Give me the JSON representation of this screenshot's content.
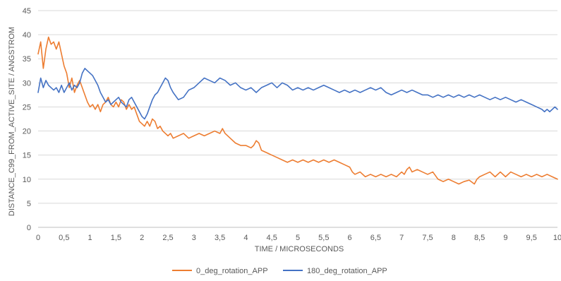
{
  "chart_data": {
    "type": "line",
    "title": "",
    "xlabel": "TIME / MICROSECONDS",
    "ylabel": "DISTANCE_C99_FROM_ACTIVE_SITE / ANGSTROM",
    "xlim": [
      0,
      10
    ],
    "ylim": [
      0,
      45
    ],
    "x_ticks": [
      "0",
      "0,5",
      "1",
      "1,5",
      "2",
      "2,5",
      "3",
      "3,5",
      "4",
      "4,5",
      "5",
      "5,5",
      "6",
      "6,5",
      "7",
      "7,5",
      "8",
      "8,5",
      "9",
      "9,5",
      "10"
    ],
    "y_ticks": [
      "0",
      "5",
      "10",
      "15",
      "20",
      "25",
      "30",
      "35",
      "40",
      "45"
    ],
    "grid": "horizontal",
    "legend_position": "bottom",
    "series": [
      {
        "name": "0_deg_rotation_APP",
        "color": "#ED7D31",
        "points": [
          [
            0,
            36
          ],
          [
            0.05,
            38.5
          ],
          [
            0.1,
            33
          ],
          [
            0.15,
            37
          ],
          [
            0.2,
            39.5
          ],
          [
            0.25,
            38
          ],
          [
            0.3,
            38.5
          ],
          [
            0.35,
            37
          ],
          [
            0.4,
            38.5
          ],
          [
            0.45,
            36
          ],
          [
            0.5,
            33.5
          ],
          [
            0.55,
            32
          ],
          [
            0.6,
            29
          ],
          [
            0.65,
            31
          ],
          [
            0.7,
            28
          ],
          [
            0.75,
            29.5
          ],
          [
            0.8,
            30.5
          ],
          [
            0.85,
            29
          ],
          [
            0.9,
            27.5
          ],
          [
            0.95,
            26
          ],
          [
            1.0,
            25
          ],
          [
            1.05,
            25.5
          ],
          [
            1.1,
            24.5
          ],
          [
            1.15,
            25.5
          ],
          [
            1.2,
            24
          ],
          [
            1.25,
            25.5
          ],
          [
            1.3,
            26
          ],
          [
            1.35,
            27
          ],
          [
            1.4,
            25.5
          ],
          [
            1.45,
            25
          ],
          [
            1.5,
            26
          ],
          [
            1.55,
            25
          ],
          [
            1.6,
            26.5
          ],
          [
            1.65,
            26
          ],
          [
            1.7,
            24.5
          ],
          [
            1.75,
            25.5
          ],
          [
            1.8,
            24.5
          ],
          [
            1.85,
            25
          ],
          [
            1.9,
            23.5
          ],
          [
            1.95,
            22
          ],
          [
            2.0,
            21.5
          ],
          [
            2.05,
            21
          ],
          [
            2.1,
            22
          ],
          [
            2.15,
            21
          ],
          [
            2.2,
            22.5
          ],
          [
            2.25,
            22
          ],
          [
            2.3,
            20.5
          ],
          [
            2.35,
            21
          ],
          [
            2.4,
            20
          ],
          [
            2.45,
            19.5
          ],
          [
            2.5,
            19
          ],
          [
            2.55,
            19.5
          ],
          [
            2.6,
            18.5
          ],
          [
            2.7,
            19
          ],
          [
            2.8,
            19.5
          ],
          [
            2.9,
            18.5
          ],
          [
            3.0,
            19
          ],
          [
            3.1,
            19.5
          ],
          [
            3.2,
            19
          ],
          [
            3.3,
            19.5
          ],
          [
            3.4,
            20
          ],
          [
            3.5,
            19.5
          ],
          [
            3.55,
            20.5
          ],
          [
            3.6,
            19.5
          ],
          [
            3.7,
            18.5
          ],
          [
            3.8,
            17.5
          ],
          [
            3.9,
            17
          ],
          [
            4.0,
            17
          ],
          [
            4.1,
            16.5
          ],
          [
            4.15,
            17
          ],
          [
            4.2,
            18
          ],
          [
            4.25,
            17.5
          ],
          [
            4.3,
            16
          ],
          [
            4.4,
            15.5
          ],
          [
            4.5,
            15
          ],
          [
            4.6,
            14.5
          ],
          [
            4.7,
            14
          ],
          [
            4.8,
            13.5
          ],
          [
            4.9,
            14
          ],
          [
            5.0,
            13.5
          ],
          [
            5.1,
            14
          ],
          [
            5.2,
            13.5
          ],
          [
            5.3,
            14
          ],
          [
            5.4,
            13.5
          ],
          [
            5.5,
            14
          ],
          [
            5.6,
            13.5
          ],
          [
            5.7,
            14
          ],
          [
            5.8,
            13.5
          ],
          [
            5.9,
            13
          ],
          [
            6.0,
            12.5
          ],
          [
            6.05,
            11.5
          ],
          [
            6.1,
            11
          ],
          [
            6.2,
            11.5
          ],
          [
            6.3,
            10.5
          ],
          [
            6.4,
            11
          ],
          [
            6.5,
            10.5
          ],
          [
            6.6,
            11
          ],
          [
            6.7,
            10.5
          ],
          [
            6.8,
            11
          ],
          [
            6.9,
            10.5
          ],
          [
            7.0,
            11.5
          ],
          [
            7.05,
            11
          ],
          [
            7.1,
            12
          ],
          [
            7.15,
            12.5
          ],
          [
            7.2,
            11.5
          ],
          [
            7.3,
            12
          ],
          [
            7.4,
            11.5
          ],
          [
            7.5,
            11
          ],
          [
            7.6,
            11.5
          ],
          [
            7.7,
            10
          ],
          [
            7.8,
            9.5
          ],
          [
            7.9,
            10
          ],
          [
            8.0,
            9.5
          ],
          [
            8.1,
            9
          ],
          [
            8.2,
            9.5
          ],
          [
            8.3,
            9.8
          ],
          [
            8.4,
            9
          ],
          [
            8.45,
            10
          ],
          [
            8.5,
            10.5
          ],
          [
            8.6,
            11
          ],
          [
            8.7,
            11.5
          ],
          [
            8.8,
            10.5
          ],
          [
            8.9,
            11.5
          ],
          [
            9.0,
            10.5
          ],
          [
            9.1,
            11.5
          ],
          [
            9.2,
            11
          ],
          [
            9.3,
            10.5
          ],
          [
            9.4,
            11
          ],
          [
            9.5,
            10.5
          ],
          [
            9.6,
            11
          ],
          [
            9.7,
            10.5
          ],
          [
            9.8,
            11
          ],
          [
            9.9,
            10.5
          ],
          [
            10.0,
            10
          ]
        ]
      },
      {
        "name": "180_deg_rotation_APP",
        "color": "#4472C4",
        "points": [
          [
            0,
            28
          ],
          [
            0.05,
            31
          ],
          [
            0.1,
            29
          ],
          [
            0.15,
            30.5
          ],
          [
            0.2,
            29.5
          ],
          [
            0.25,
            29
          ],
          [
            0.3,
            28.5
          ],
          [
            0.35,
            29
          ],
          [
            0.4,
            28
          ],
          [
            0.45,
            29.5
          ],
          [
            0.5,
            28
          ],
          [
            0.55,
            29
          ],
          [
            0.6,
            30
          ],
          [
            0.65,
            28.5
          ],
          [
            0.7,
            29.5
          ],
          [
            0.75,
            29
          ],
          [
            0.8,
            30
          ],
          [
            0.85,
            32
          ],
          [
            0.9,
            33
          ],
          [
            0.95,
            32.5
          ],
          [
            1.0,
            32
          ],
          [
            1.05,
            31.5
          ],
          [
            1.1,
            30.5
          ],
          [
            1.15,
            29.5
          ],
          [
            1.2,
            28
          ],
          [
            1.25,
            27
          ],
          [
            1.3,
            26
          ],
          [
            1.35,
            26.5
          ],
          [
            1.4,
            25.5
          ],
          [
            1.45,
            26
          ],
          [
            1.5,
            26.5
          ],
          [
            1.55,
            27
          ],
          [
            1.6,
            26
          ],
          [
            1.65,
            25.5
          ],
          [
            1.7,
            25
          ],
          [
            1.75,
            26.5
          ],
          [
            1.8,
            27
          ],
          [
            1.85,
            26
          ],
          [
            1.9,
            25
          ],
          [
            1.95,
            24
          ],
          [
            2.0,
            23
          ],
          [
            2.05,
            22.5
          ],
          [
            2.1,
            23.5
          ],
          [
            2.15,
            25
          ],
          [
            2.2,
            26.5
          ],
          [
            2.25,
            27.5
          ],
          [
            2.3,
            28
          ],
          [
            2.35,
            29
          ],
          [
            2.4,
            30
          ],
          [
            2.45,
            31
          ],
          [
            2.5,
            30.5
          ],
          [
            2.55,
            29
          ],
          [
            2.6,
            28
          ],
          [
            2.7,
            26.5
          ],
          [
            2.8,
            27
          ],
          [
            2.9,
            28.5
          ],
          [
            3.0,
            29
          ],
          [
            3.1,
            30
          ],
          [
            3.2,
            31
          ],
          [
            3.3,
            30.5
          ],
          [
            3.4,
            30
          ],
          [
            3.5,
            31
          ],
          [
            3.6,
            30.5
          ],
          [
            3.7,
            29.5
          ],
          [
            3.8,
            30
          ],
          [
            3.9,
            29
          ],
          [
            4.0,
            28.5
          ],
          [
            4.1,
            29
          ],
          [
            4.2,
            28
          ],
          [
            4.3,
            29
          ],
          [
            4.4,
            29.5
          ],
          [
            4.5,
            30
          ],
          [
            4.6,
            29
          ],
          [
            4.7,
            30
          ],
          [
            4.8,
            29.5
          ],
          [
            4.9,
            28.5
          ],
          [
            5.0,
            29
          ],
          [
            5.1,
            28.5
          ],
          [
            5.2,
            29
          ],
          [
            5.3,
            28.5
          ],
          [
            5.4,
            29
          ],
          [
            5.5,
            29.5
          ],
          [
            5.6,
            29
          ],
          [
            5.7,
            28.5
          ],
          [
            5.8,
            28
          ],
          [
            5.9,
            28.5
          ],
          [
            6.0,
            28
          ],
          [
            6.1,
            28.5
          ],
          [
            6.2,
            28
          ],
          [
            6.3,
            28.5
          ],
          [
            6.4,
            29
          ],
          [
            6.5,
            28.5
          ],
          [
            6.6,
            29
          ],
          [
            6.7,
            28
          ],
          [
            6.8,
            27.5
          ],
          [
            6.9,
            28
          ],
          [
            7.0,
            28.5
          ],
          [
            7.1,
            28
          ],
          [
            7.2,
            28.5
          ],
          [
            7.3,
            28
          ],
          [
            7.4,
            27.5
          ],
          [
            7.5,
            27.5
          ],
          [
            7.6,
            27
          ],
          [
            7.7,
            27.5
          ],
          [
            7.8,
            27
          ],
          [
            7.9,
            27.5
          ],
          [
            8.0,
            27
          ],
          [
            8.1,
            27.5
          ],
          [
            8.2,
            27
          ],
          [
            8.3,
            27.5
          ],
          [
            8.4,
            27
          ],
          [
            8.5,
            27.5
          ],
          [
            8.6,
            27
          ],
          [
            8.7,
            26.5
          ],
          [
            8.8,
            27
          ],
          [
            8.9,
            26.5
          ],
          [
            9.0,
            27
          ],
          [
            9.1,
            26.5
          ],
          [
            9.2,
            26
          ],
          [
            9.3,
            26.5
          ],
          [
            9.4,
            26
          ],
          [
            9.5,
            25.5
          ],
          [
            9.6,
            25
          ],
          [
            9.7,
            24.5
          ],
          [
            9.75,
            24
          ],
          [
            9.8,
            24.5
          ],
          [
            9.85,
            24
          ],
          [
            9.9,
            24.5
          ],
          [
            9.95,
            25
          ],
          [
            10.0,
            24.5
          ]
        ]
      }
    ]
  }
}
